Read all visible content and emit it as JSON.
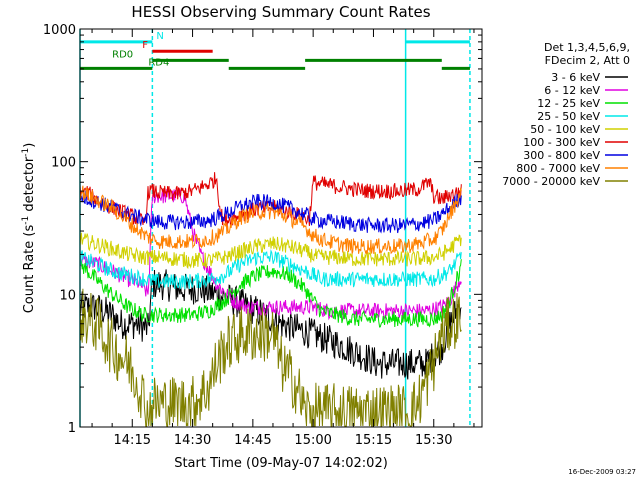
{
  "chart_data": {
    "type": "line",
    "title": "HESSI Observing Summary Count Rates",
    "xlabel": "Start Time (09-May-07 14:02:02)",
    "ylabel_main": "Count Rate (s",
    "ylabel_sup1": "-1",
    "ylabel_mid": " detector",
    "ylabel_sup2": "-1",
    "ylabel_end": ")",
    "yscale": "log",
    "ylim": [
      1,
      1000
    ],
    "xlim_minutes": [
      0,
      100
    ],
    "x_ticks": [
      {
        "minute": 13,
        "label": "14:15"
      },
      {
        "minute": 28,
        "label": "14:30"
      },
      {
        "minute": 43,
        "label": "14:45"
      },
      {
        "minute": 58,
        "label": "15:00"
      },
      {
        "minute": 73,
        "label": "15:15"
      },
      {
        "minute": 88,
        "label": "15:30"
      }
    ],
    "y_ticks": [
      {
        "value": 1,
        "label": "1"
      },
      {
        "value": 10,
        "label": "10"
      },
      {
        "value": 100,
        "label": "100"
      },
      {
        "value": 1000,
        "label": "1000"
      }
    ],
    "legend_header": [
      "Det 1,3,4,5,6,9,",
      "FDecim 2, Att 0"
    ],
    "series": [
      {
        "name": "3 - 6 keV",
        "color": "#000000",
        "x": [
          0,
          4,
          8,
          10,
          14,
          17,
          18,
          20,
          25,
          30,
          34,
          38,
          42,
          46,
          50,
          54,
          58,
          62,
          66,
          70,
          74,
          78,
          80,
          84,
          86,
          90,
          92,
          95
        ],
        "y": [
          8,
          8,
          7,
          6,
          6,
          5.5,
          12,
          12,
          11,
          11,
          10,
          9,
          8,
          7,
          6,
          5.5,
          5,
          4.5,
          4,
          3.5,
          3,
          3,
          3,
          3,
          3,
          4,
          6,
          9
        ]
      },
      {
        "name": "6 - 12 keV",
        "color": "#e000e0",
        "x": [
          0,
          4,
          8,
          12,
          15,
          17,
          18,
          20,
          24,
          26,
          28,
          30,
          34,
          38,
          42,
          46,
          50,
          54,
          58,
          62,
          66,
          70,
          74,
          78,
          82,
          86,
          90,
          92,
          95
        ],
        "y": [
          18,
          17,
          15,
          13,
          12,
          10,
          55,
          55,
          55,
          55,
          30,
          20,
          12,
          9,
          8,
          8,
          8,
          8,
          8,
          7.5,
          7.5,
          7.5,
          7.5,
          7.5,
          7.5,
          7.5,
          8,
          9,
          14
        ]
      },
      {
        "name": "12 - 25 keV",
        "color": "#00e000",
        "x": [
          0,
          4,
          8,
          12,
          16,
          18,
          20,
          24,
          28,
          32,
          36,
          40,
          44,
          48,
          52,
          56,
          58,
          60,
          64,
          68,
          72,
          76,
          80,
          84,
          88,
          90,
          92,
          95
        ],
        "y": [
          17,
          13,
          10,
          8,
          7,
          7,
          7,
          7,
          7,
          7.5,
          9,
          12,
          14,
          15,
          14,
          11,
          9,
          7.5,
          7,
          6.5,
          6.5,
          6.5,
          6.5,
          6.5,
          6.5,
          7,
          9,
          17
        ]
      },
      {
        "name": "25 - 50 keV",
        "color": "#00e8e8",
        "x": [
          0,
          4,
          8,
          12,
          16,
          18,
          20,
          24,
          28,
          32,
          36,
          40,
          44,
          48,
          52,
          56,
          58,
          60,
          64,
          68,
          72,
          76,
          80,
          84,
          88,
          90,
          92,
          95
        ],
        "y": [
          19,
          17,
          15,
          14,
          13,
          12.5,
          12.5,
          12.5,
          12.5,
          13,
          14,
          17,
          19,
          19,
          17,
          15,
          14,
          13,
          13,
          13,
          13,
          13,
          13,
          13,
          13,
          14,
          15,
          20
        ]
      },
      {
        "name": "50 - 100 keV",
        "color": "#d0d000",
        "x": [
          0,
          4,
          8,
          12,
          16,
          18,
          20,
          24,
          28,
          32,
          36,
          40,
          44,
          48,
          52,
          56,
          58,
          60,
          64,
          68,
          72,
          76,
          80,
          84,
          88,
          90,
          92,
          95
        ],
        "y": [
          26,
          24,
          22,
          20,
          19,
          19,
          19,
          18.5,
          18,
          18,
          19,
          21,
          23,
          24,
          23,
          21,
          19.5,
          19,
          19,
          18.5,
          18.5,
          18.5,
          18.5,
          18.5,
          19,
          20,
          22,
          27
        ]
      },
      {
        "name": "100 - 300 keV",
        "color": "#e00000",
        "x": [
          0,
          2,
          4,
          8,
          12,
          15,
          16,
          17,
          18,
          20,
          24,
          28,
          32,
          34,
          35,
          36,
          40,
          44,
          48,
          52,
          56,
          57,
          58,
          60,
          64,
          68,
          72,
          76,
          80,
          84,
          87,
          88,
          90,
          92,
          95
        ],
        "y": [
          60,
          58,
          52,
          45,
          40,
          36,
          34,
          60,
          60,
          58,
          57,
          60,
          68,
          75,
          40,
          36,
          40,
          44,
          45,
          42,
          38,
          36,
          70,
          68,
          65,
          62,
          60,
          60,
          60,
          62,
          70,
          55,
          52,
          56,
          60
        ]
      },
      {
        "name": "300 - 800 keV",
        "color": "#0000e0",
        "x": [
          0,
          4,
          8,
          12,
          16,
          18,
          20,
          24,
          28,
          32,
          36,
          40,
          44,
          48,
          52,
          56,
          58,
          60,
          64,
          68,
          72,
          76,
          80,
          84,
          88,
          90,
          92,
          95
        ],
        "y": [
          55,
          50,
          45,
          40,
          37,
          36,
          35,
          35,
          35,
          36,
          40,
          46,
          50,
          49,
          45,
          40,
          37,
          36,
          35,
          34,
          33,
          33,
          33,
          34,
          36,
          40,
          45,
          55
        ]
      },
      {
        "name": "800 - 7000 keV",
        "color": "#ff8000",
        "x": [
          0,
          4,
          8,
          12,
          16,
          18,
          20,
          24,
          28,
          32,
          36,
          40,
          44,
          48,
          52,
          56,
          58,
          60,
          64,
          68,
          72,
          76,
          80,
          84,
          88,
          90,
          92,
          95
        ],
        "y": [
          60,
          52,
          45,
          35,
          28,
          26,
          25,
          25,
          25,
          26,
          30,
          38,
          42,
          42,
          38,
          32,
          28,
          26,
          24,
          23,
          23,
          23,
          23,
          24,
          26,
          30,
          40,
          60
        ]
      },
      {
        "name": "7000 - 20000 keV",
        "color": "#808000",
        "x": [
          0,
          4,
          8,
          12,
          15,
          17,
          18,
          20,
          24,
          28,
          32,
          34,
          36,
          40,
          44,
          48,
          50,
          54,
          56,
          58,
          60,
          64,
          68,
          72,
          76,
          80,
          82,
          84,
          88,
          90,
          92,
          95
        ],
        "y": [
          7,
          6,
          4,
          3,
          2,
          1.2,
          1.5,
          1.5,
          1.5,
          1.5,
          2,
          3,
          4,
          5,
          5,
          5,
          3,
          2,
          1.3,
          1.3,
          1.3,
          1.3,
          1.3,
          1.3,
          1.3,
          1.3,
          1.3,
          1.5,
          3,
          5,
          6,
          7
        ]
      }
    ],
    "grid": false,
    "legend_placement": "right",
    "annotations": {
      "vertical_lines": [
        {
          "minute": 0,
          "color": "#00e8e8",
          "style": "solid"
        },
        {
          "minute": 18,
          "color": "#00e8e8",
          "style": "dashed"
        },
        {
          "minute": 81,
          "color": "#00e8e8",
          "style": "solid"
        },
        {
          "minute": 97,
          "color": "#00e8e8",
          "style": "dashed"
        }
      ],
      "bars": [
        {
          "label": "N",
          "color": "#00e8e8",
          "level": 800,
          "segments": [
            [
              0,
              18
            ],
            [
              81,
              97
            ]
          ],
          "label_minute": 19
        },
        {
          "label": "F",
          "color": "#e00000",
          "level": 680,
          "segments": [
            [
              18,
              33
            ]
          ],
          "label_minute": 15.5
        },
        {
          "label": "RD0",
          "color": "#008000",
          "level": 580,
          "segments": [
            [
              18,
              37
            ],
            [
              56,
              90
            ]
          ],
          "label_minute": 8
        },
        {
          "label": "RD4",
          "color": "#008000",
          "level": 505,
          "segments": [
            [
              0,
              18
            ],
            [
              37,
              56
            ],
            [
              90,
              97
            ]
          ],
          "label_minute": 17
        }
      ]
    },
    "timestamp": "16-Dec-2009 03:27"
  }
}
